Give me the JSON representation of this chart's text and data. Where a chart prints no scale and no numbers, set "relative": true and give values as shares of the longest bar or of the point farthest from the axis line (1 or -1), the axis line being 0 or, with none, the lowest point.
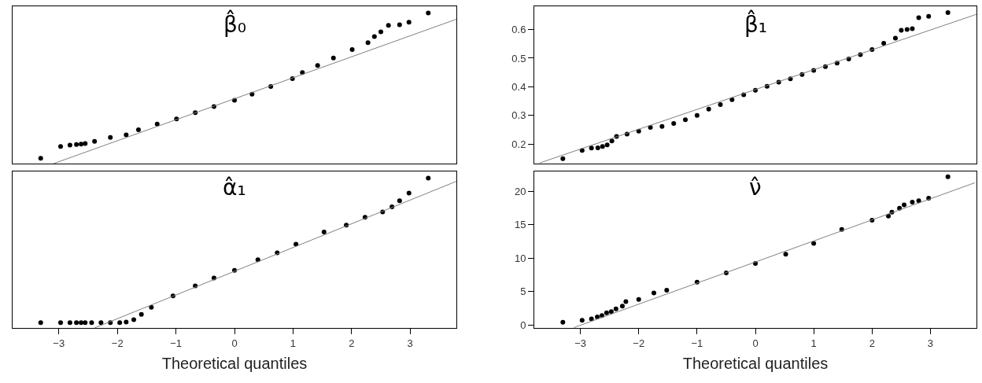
{
  "chart_data": [
    {
      "type": "scatter",
      "title": "β̂₀",
      "relative": true,
      "xlim": [
        -3.79,
        3.79
      ],
      "xticks": [
        -3,
        -2,
        -1,
        0,
        1,
        2,
        3
      ],
      "tick_labels": false,
      "series": [
        {
          "type": "scatter",
          "marker": "circle",
          "color": "#000000",
          "x": [
            -3.31,
            -2.97,
            -2.81,
            -2.7,
            -2.62,
            -2.55,
            -2.39,
            -2.12,
            -1.85,
            -1.64,
            -1.32,
            -0.99,
            -0.67,
            -0.35,
            0,
            0.3,
            0.62,
            0.99,
            1.16,
            1.42,
            1.69,
            2.01,
            2.28,
            2.39,
            2.5,
            2.63,
            2.82,
            2.98,
            3.31
          ],
          "values": [
            0.035,
            0.113,
            0.123,
            0.127,
            0.129,
            0.133,
            0.148,
            0.174,
            0.191,
            0.225,
            0.262,
            0.297,
            0.338,
            0.379,
            0.42,
            0.461,
            0.512,
            0.564,
            0.605,
            0.652,
            0.701,
            0.758,
            0.803,
            0.844,
            0.875,
            0.918,
            0.922,
            0.939,
            1
          ]
        },
        {
          "type": "line",
          "marker": "none",
          "color": "#808080",
          "x": [
            -3.09,
            3.79
          ],
          "values": [
            0,
            0.959
          ]
        }
      ]
    },
    {
      "type": "scatter",
      "title": "β̂₁",
      "xlim": [
        -3.79,
        3.79
      ],
      "xticks": [
        -3,
        -2,
        -1,
        0,
        1,
        2,
        3
      ],
      "ylim": [
        0.132,
        0.681
      ],
      "yticks": [
        0.2,
        0.3,
        0.4,
        0.5,
        0.6
      ],
      "tick_labels": "y",
      "series": [
        {
          "type": "scatter",
          "marker": "circle",
          "color": "#000000",
          "x": [
            -3.3,
            -2.97,
            -2.81,
            -2.7,
            -2.62,
            -2.54,
            -2.46,
            -2.38,
            -2.2,
            -2.0,
            -1.8,
            -1.6,
            -1.4,
            -1.2,
            -1.0,
            -0.8,
            -0.6,
            -0.4,
            -0.2,
            0,
            0.2,
            0.4,
            0.6,
            0.8,
            1.0,
            1.2,
            1.4,
            1.6,
            1.8,
            2.0,
            2.2,
            2.4,
            2.5,
            2.6,
            2.69,
            2.8,
            2.97,
            3.3
          ],
          "values": [
            0.149,
            0.178,
            0.186,
            0.187,
            0.192,
            0.197,
            0.211,
            0.227,
            0.235,
            0.245,
            0.258,
            0.262,
            0.272,
            0.285,
            0.3,
            0.322,
            0.338,
            0.355,
            0.372,
            0.388,
            0.402,
            0.416,
            0.428,
            0.443,
            0.457,
            0.47,
            0.483,
            0.497,
            0.512,
            0.53,
            0.552,
            0.57,
            0.597,
            0.6,
            0.603,
            0.641,
            0.646,
            0.659
          ]
        },
        {
          "type": "line",
          "marker": "none",
          "color": "#808080",
          "x": [
            -3.7,
            3.79
          ],
          "values": [
            0.134,
            0.653
          ]
        }
      ]
    },
    {
      "type": "scatter",
      "title": "α̂₁",
      "xlabel": "Theoretical quantiles",
      "relative": true,
      "xlim": [
        -3.79,
        3.79
      ],
      "xticks": [
        -3,
        -2,
        -1,
        0,
        1,
        2,
        3
      ],
      "tick_labels": "x",
      "series": [
        {
          "type": "scatter",
          "marker": "circle",
          "color": "#000000",
          "x": [
            -3.31,
            -2.97,
            -2.81,
            -2.7,
            -2.62,
            -2.55,
            -2.44,
            -2.28,
            -2.12,
            -1.96,
            -1.85,
            -1.72,
            -1.59,
            -1.42,
            -1.05,
            -0.67,
            -0.35,
            0,
            0.4,
            0.73,
            1.05,
            1.53,
            1.91,
            2.23,
            2.53,
            2.69,
            2.82,
            2.98,
            3.31
          ],
          "values": [
            0.035,
            0.035,
            0.035,
            0.035,
            0.035,
            0.035,
            0.035,
            0.035,
            0.035,
            0.035,
            0.039,
            0.055,
            0.09,
            0.138,
            0.214,
            0.281,
            0.333,
            0.384,
            0.456,
            0.501,
            0.559,
            0.641,
            0.686,
            0.739,
            0.774,
            0.809,
            0.85,
            0.901,
            1
          ]
        },
        {
          "type": "line",
          "marker": "none",
          "color": "#808080",
          "x": [
            -2.39,
            3.79
          ],
          "values": [
            0,
            0.979
          ]
        }
      ]
    },
    {
      "type": "scatter",
      "title": "ν̂",
      "xlabel": "Theoretical quantiles",
      "xlim": [
        -3.79,
        3.79
      ],
      "xticks": [
        -3,
        -2,
        -1,
        0,
        1,
        2,
        3
      ],
      "ylim": [
        -0.46,
        23.0
      ],
      "yticks": [
        0,
        5,
        10,
        15,
        20
      ],
      "series": [
        {
          "type": "scatter",
          "marker": "circle",
          "color": "#000000",
          "x": [
            -3.3,
            -2.97,
            -2.81,
            -2.71,
            -2.63,
            -2.55,
            -2.47,
            -2.39,
            -2.28,
            -2.22,
            -2.0,
            -1.74,
            -1.52,
            -1.0,
            -0.5,
            0,
            0.52,
            1.0,
            1.48,
            2.0,
            2.28,
            2.34,
            2.47,
            2.55,
            2.69,
            2.8,
            2.97,
            3.3
          ],
          "values": [
            0.4,
            0.7,
            0.9,
            1.2,
            1.4,
            1.8,
            2.0,
            2.4,
            2.8,
            3.5,
            3.8,
            4.8,
            5.2,
            6.4,
            7.8,
            9.2,
            10.6,
            12.2,
            14.3,
            15.7,
            16.3,
            16.9,
            17.5,
            18.0,
            18.4,
            18.6,
            19.0,
            22.2
          ]
        },
        {
          "type": "line",
          "marker": "none",
          "color": "#808080",
          "x": [
            -3.11,
            3.76
          ],
          "values": [
            -0.4,
            21.3
          ]
        }
      ]
    }
  ]
}
